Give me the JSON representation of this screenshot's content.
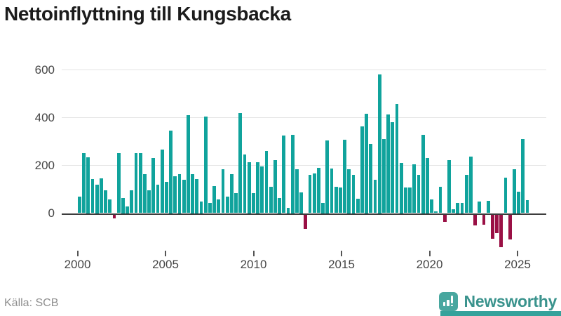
{
  "title": "Nettoinflyttning till Kungsbacka",
  "source": "Källa: SCB",
  "branding": {
    "name": "Newsworthy",
    "icon": "newsworthy-chart-bubble-icon"
  },
  "colors": {
    "positive": "#10a39c",
    "negative": "#9a1045",
    "grid": "#e4e4e4",
    "axis_line": "#3d3d3d",
    "tick_label": "#454545",
    "title": "#1c1c1c",
    "source_text": "#8f8f8f",
    "brand_text": "#3a938d",
    "brand_icon": "#48a79f",
    "brand_strip": "#35a29b"
  },
  "chart_data": {
    "type": "bar",
    "title": "Nettoinflyttning till Kungsbacka",
    "period": "quarterly",
    "start": "2000-Q1",
    "x_tick_labels": [
      "2000",
      "2005",
      "2010",
      "2015",
      "2020",
      "2025"
    ],
    "y_ticks": [
      0,
      200,
      400,
      600
    ],
    "ylim": [
      -160,
      640
    ],
    "grid": "horizontal",
    "legend": "none",
    "values": [
      70,
      250,
      235,
      143,
      119,
      146,
      96,
      56,
      -15,
      250,
      63,
      28,
      95,
      250,
      250,
      162,
      95,
      230,
      120,
      265,
      132,
      345,
      153,
      163,
      139,
      411,
      163,
      144,
      50,
      405,
      42,
      114,
      56,
      184,
      68,
      164,
      85,
      418,
      246,
      213,
      83,
      213,
      195,
      259,
      109,
      222,
      63,
      325,
      22,
      329,
      184,
      88,
      -59,
      161,
      167,
      190,
      44,
      304,
      187,
      109,
      107,
      306,
      185,
      160,
      61,
      363,
      417,
      288,
      140,
      580,
      311,
      413,
      380,
      458,
      210,
      107,
      107,
      203,
      161,
      329,
      232,
      56,
      8,
      109,
      -30,
      221,
      15,
      44,
      44,
      161,
      237,
      -44,
      49,
      -41,
      51,
      -100,
      -78,
      -137,
      149,
      -104,
      185,
      91,
      310,
      54
    ]
  }
}
